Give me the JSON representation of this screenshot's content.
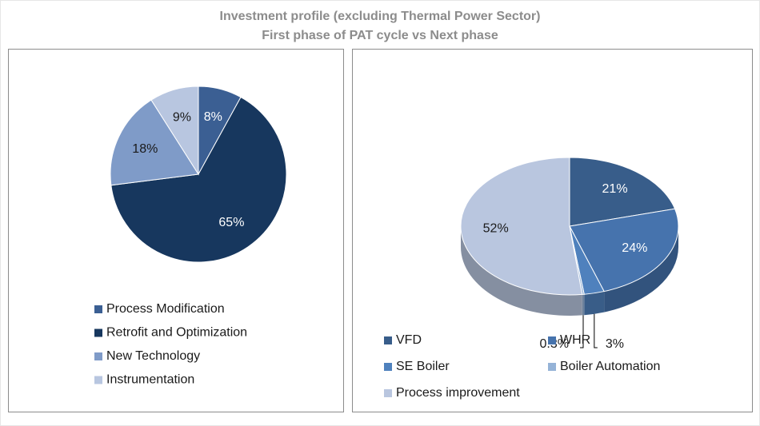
{
  "title": "Investment profile (excluding Thermal Power Sector)",
  "subtitle": "First phase of PAT cycle vs Next phase",
  "chart_data": [
    {
      "type": "pie",
      "categories": [
        "Process Modification",
        "Retrofit and Optimization",
        "New Technology",
        "Instrumentation"
      ],
      "values": [
        8,
        65,
        18,
        9
      ],
      "value_labels": [
        "8%",
        "65%",
        "18%",
        "9%"
      ],
      "colors": [
        "#3b5f93",
        "#17375e",
        "#7f9bc8",
        "#b8c6e0"
      ]
    },
    {
      "type": "pie3d",
      "categories": [
        "VFD",
        "WHR",
        "SE Boiler",
        "Boiler Automation",
        "Process improvement"
      ],
      "values": [
        21,
        24,
        3,
        0.3,
        52
      ],
      "value_labels": [
        "21%",
        "24%",
        "3%",
        "0.3%",
        "52%"
      ],
      "colors": [
        "#385d8a",
        "#4673ad",
        "#4f81bd",
        "#95b3d7",
        "#b9c6df"
      ]
    }
  ]
}
